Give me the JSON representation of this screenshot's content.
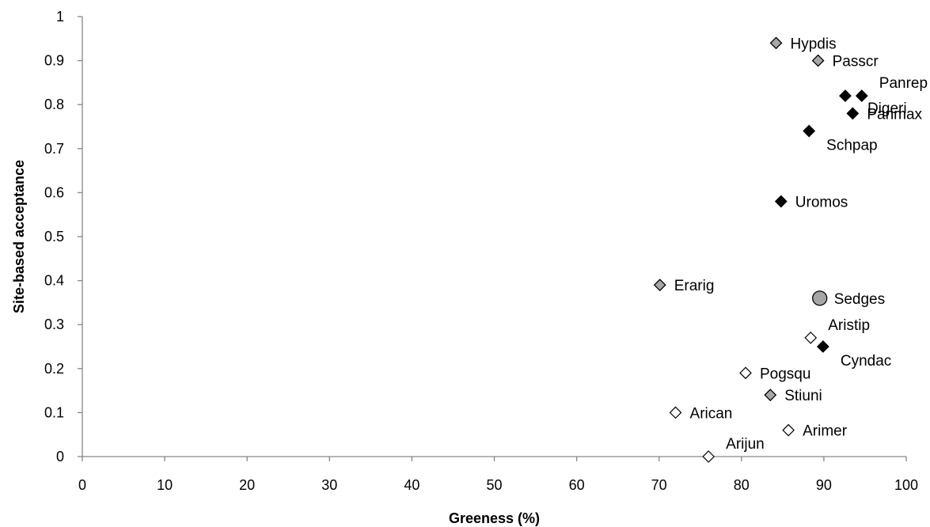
{
  "chart_data": {
    "type": "scatter",
    "title": "",
    "xlabel": "Greeness (%)",
    "ylabel": "Site-based acceptance",
    "xlim": [
      0,
      100
    ],
    "ylim": [
      0,
      1
    ],
    "x_ticks": [
      "0",
      "10",
      "20",
      "30",
      "40",
      "50",
      "60",
      "70",
      "80",
      "90",
      "100"
    ],
    "y_ticks": [
      "0",
      "0.1",
      "0.2",
      "0.3",
      "0.4",
      "0.5",
      "0.6",
      "0.7",
      "0.8",
      "0.9",
      "1"
    ],
    "grid": false,
    "legend": "none",
    "colors": {
      "black": "#000000",
      "grey": "#a6a6a6",
      "white": "#ffffff"
    },
    "points": [
      {
        "label": "Hypdis",
        "x": 84.2,
        "y": 0.94,
        "marker": "diamond",
        "fill": "grey",
        "label_pos": "right"
      },
      {
        "label": "Passcr",
        "x": 89.3,
        "y": 0.9,
        "marker": "diamond",
        "fill": "grey",
        "label_pos": "right"
      },
      {
        "label": "Panrep",
        "x": 94.6,
        "y": 0.82,
        "marker": "diamond",
        "fill": "black",
        "label_pos": "upper-right"
      },
      {
        "label": "Digeri",
        "x": 92.6,
        "y": 0.82,
        "marker": "diamond",
        "fill": "black",
        "label_pos": "far-right"
      },
      {
        "label": "Panmax",
        "x": 93.5,
        "y": 0.78,
        "marker": "diamond",
        "fill": "black",
        "label_pos": "right"
      },
      {
        "label": "Schpap",
        "x": 88.2,
        "y": 0.74,
        "marker": "diamond",
        "fill": "black",
        "label_pos": "lower-right"
      },
      {
        "label": "Uromos",
        "x": 84.8,
        "y": 0.58,
        "marker": "diamond",
        "fill": "black",
        "label_pos": "right"
      },
      {
        "label": "Erarig",
        "x": 70.1,
        "y": 0.39,
        "marker": "diamond",
        "fill": "grey",
        "label_pos": "right"
      },
      {
        "label": "Sedges",
        "x": 89.5,
        "y": 0.36,
        "marker": "circle",
        "fill": "grey",
        "label_pos": "right"
      },
      {
        "label": "Aristip",
        "x": 88.4,
        "y": 0.27,
        "marker": "diamond",
        "fill": "white",
        "label_pos": "upper-right"
      },
      {
        "label": "Cyndac",
        "x": 89.9,
        "y": 0.25,
        "marker": "diamond",
        "fill": "black",
        "label_pos": "lower-right"
      },
      {
        "label": "Pogsqu",
        "x": 80.5,
        "y": 0.19,
        "marker": "diamond",
        "fill": "white",
        "label_pos": "right"
      },
      {
        "label": "Stiuni",
        "x": 83.5,
        "y": 0.14,
        "marker": "diamond",
        "fill": "grey",
        "label_pos": "right"
      },
      {
        "label": "Arican",
        "x": 72.0,
        "y": 0.1,
        "marker": "diamond",
        "fill": "white",
        "label_pos": "right"
      },
      {
        "label": "Arimer",
        "x": 85.7,
        "y": 0.06,
        "marker": "diamond",
        "fill": "white",
        "label_pos": "right"
      },
      {
        "label": "Arijun",
        "x": 76.0,
        "y": 0.0,
        "marker": "diamond",
        "fill": "white",
        "label_pos": "upper-right"
      }
    ]
  }
}
